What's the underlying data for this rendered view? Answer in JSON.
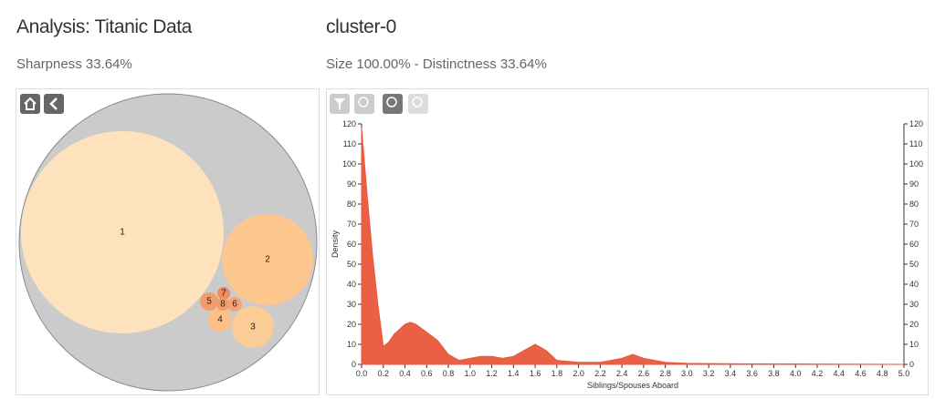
{
  "header": {
    "title": "Analysis: Titanic Data",
    "subtitle": "Sharpness 33.64%"
  },
  "cluster": {
    "title": "cluster-0",
    "subtitle": "Size 100.00% - Distinctness 33.64%"
  },
  "nodes": [
    {
      "label": "1"
    },
    {
      "label": "2"
    },
    {
      "label": "3"
    },
    {
      "label": "4"
    },
    {
      "label": "5"
    },
    {
      "label": "6"
    },
    {
      "label": "7"
    },
    {
      "label": "8"
    }
  ],
  "chart_data": {
    "type": "area",
    "xlabel": "Siblings/Spouses Aboard",
    "ylabel": "Density",
    "x": [
      0,
      0.05,
      0.1,
      0.15,
      0.2,
      0.25,
      0.3,
      0.4,
      0.45,
      0.5,
      0.6,
      0.7,
      0.8,
      0.9,
      1.0,
      1.1,
      1.2,
      1.3,
      1.4,
      1.5,
      1.6,
      1.7,
      1.8,
      2.0,
      2.2,
      2.4,
      2.5,
      2.6,
      2.8,
      3.0,
      3.5,
      4.0,
      4.5,
      5.0
    ],
    "series": [
      {
        "color": "#e9573a",
        "values": [
          118,
          85,
          55,
          30,
          9,
          11,
          15,
          20,
          21,
          20,
          16,
          12,
          5,
          2,
          3,
          4,
          4,
          3,
          4,
          7,
          10,
          7,
          2,
          1,
          1,
          3,
          5,
          3,
          1,
          0.5,
          0.3,
          0.2,
          0.1,
          0
        ]
      }
    ],
    "xlim": [
      0,
      5
    ],
    "ylim": [
      0,
      120
    ],
    "xticks": [
      {
        "value": 0,
        "label": "0.0"
      },
      0.2,
      0.4,
      0.6,
      0.8,
      {
        "value": 1,
        "label": "1.0"
      },
      1.2,
      1.4,
      1.6,
      1.8,
      {
        "value": 2,
        "label": "2.0"
      },
      2.2,
      2.4,
      2.6,
      2.8,
      {
        "value": 3,
        "label": "3.0"
      },
      3.2,
      3.4,
      3.6,
      3.8,
      {
        "value": 4,
        "label": "4.0"
      },
      4.2,
      4.4,
      4.6,
      4.8,
      {
        "value": 5,
        "label": "5.0"
      }
    ],
    "yticks": [
      0,
      10,
      20,
      30,
      40,
      50,
      60,
      70,
      80,
      90,
      100,
      110,
      120
    ]
  }
}
